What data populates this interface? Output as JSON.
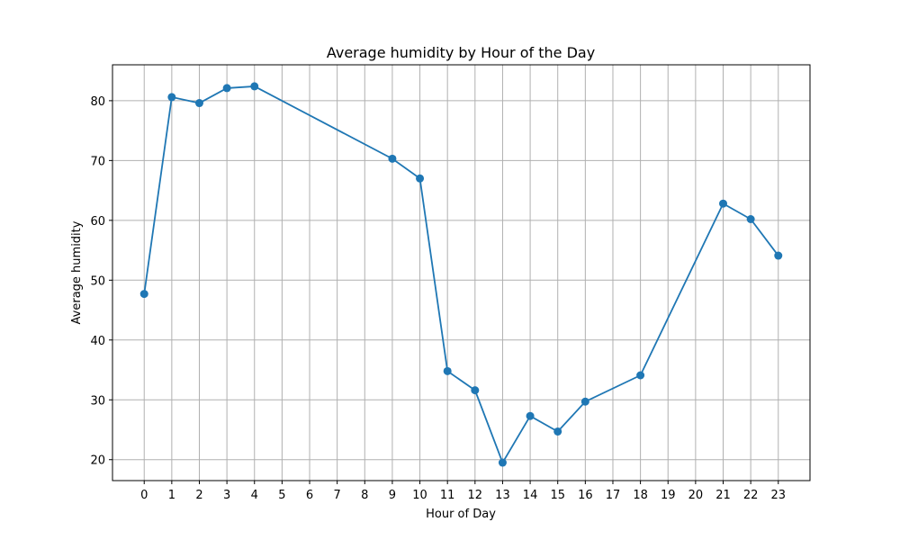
{
  "chart_data": {
    "type": "line",
    "title": "Average humidity by Hour of the Day",
    "xlabel": "Hour of Day",
    "ylabel": "Average humidity",
    "x_ticks": [
      "0",
      "1",
      "2",
      "3",
      "4",
      "5",
      "6",
      "7",
      "8",
      "9",
      "10",
      "11",
      "12",
      "13",
      "14",
      "15",
      "16",
      "17",
      "18",
      "19",
      "20",
      "21",
      "22",
      "23"
    ],
    "y_ticks": [
      20,
      30,
      40,
      50,
      60,
      70,
      80
    ],
    "ylim": [
      16.5,
      86.0
    ],
    "xlim": [
      -1.15,
      24.15
    ],
    "grid": true,
    "series": [
      {
        "x": [
          0,
          1,
          2,
          3,
          4,
          9,
          10,
          11,
          12,
          13,
          14,
          15,
          16,
          18,
          21,
          22,
          23
        ],
        "y": [
          47.7,
          80.6,
          79.6,
          82.1,
          82.4,
          70.3,
          67.0,
          34.8,
          31.6,
          19.5,
          27.3,
          24.7,
          29.7,
          34.1,
          62.8,
          60.2,
          54.1
        ],
        "color": "#1f77b4"
      }
    ]
  }
}
